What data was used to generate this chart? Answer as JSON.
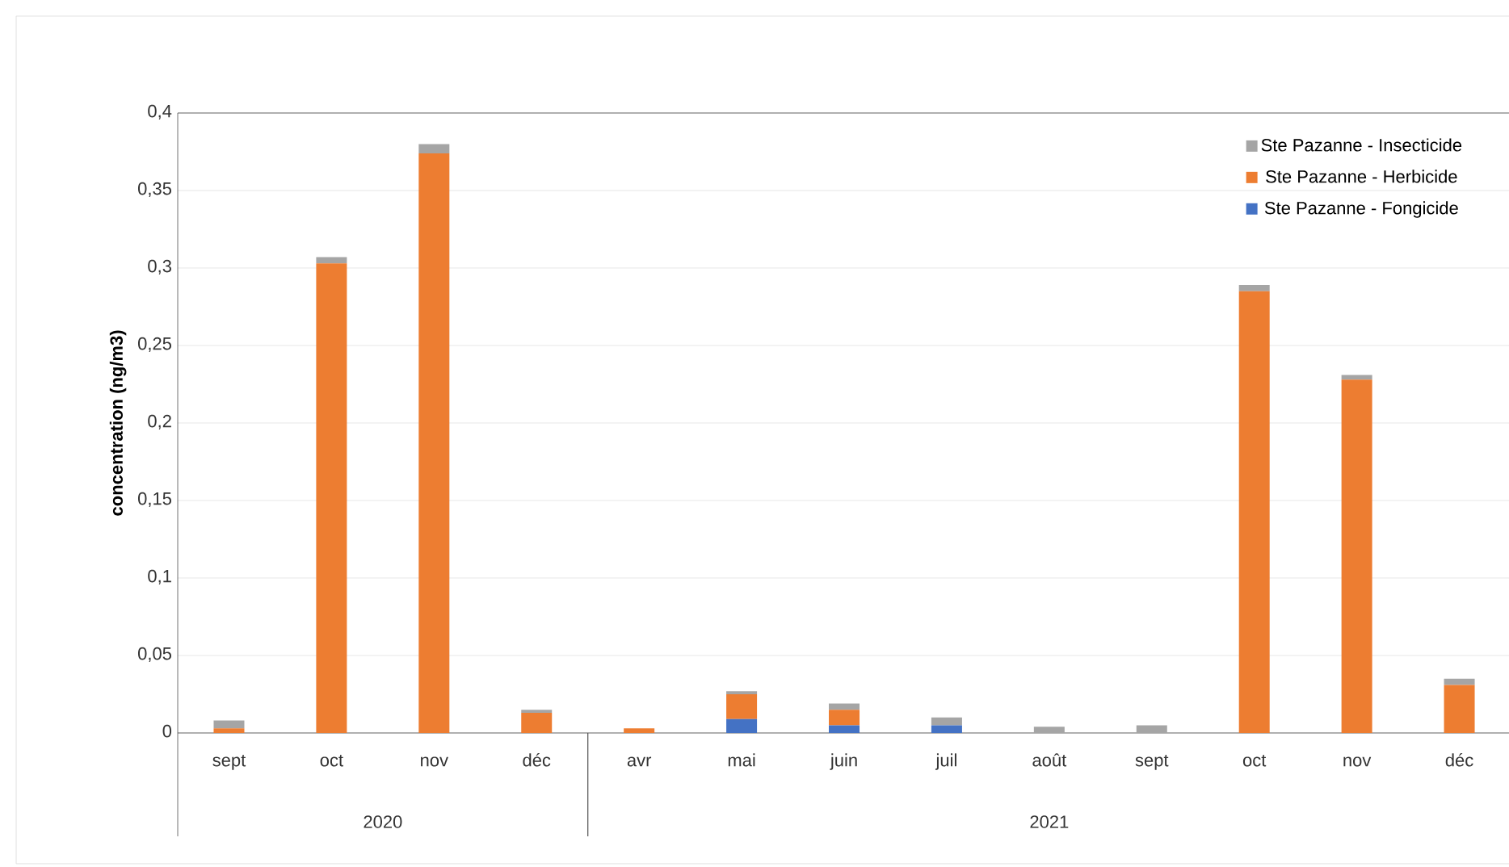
{
  "chart_data": {
    "type": "bar",
    "stacked": true,
    "ylabel": "concentration (ng/m3)",
    "categories": [
      "sept",
      "oct",
      "nov",
      "déc",
      "avr",
      "mai",
      "juin",
      "juil",
      "août",
      "sept",
      "oct",
      "nov",
      "déc"
    ],
    "series": [
      {
        "name": "Ste Pazanne - Fongicide",
        "color": "#4472c4",
        "values": [
          0,
          0,
          0,
          0,
          0,
          0.009,
          0.005,
          0.005,
          0,
          0,
          0,
          0,
          0
        ]
      },
      {
        "name": "Ste Pazanne - Herbicide",
        "color": "#ed7d31",
        "values": [
          0.003,
          0.303,
          0.374,
          0.013,
          0.003,
          0.016,
          0.01,
          0,
          0,
          0,
          0.285,
          0.228,
          0.031
        ]
      },
      {
        "name": "Ste Pazanne - Insecticide",
        "color": "#a5a5a5",
        "values": [
          0.005,
          0.004,
          0.006,
          0.002,
          0,
          0.002,
          0.004,
          0.005,
          0.004,
          0.005,
          0.004,
          0.003,
          0.004
        ]
      }
    ],
    "ylim": [
      0,
      0.4
    ],
    "yticks": [
      {
        "value": 0,
        "label": "0"
      },
      {
        "value": 0.05,
        "label": "0,05"
      },
      {
        "value": 0.1,
        "label": "0,1"
      },
      {
        "value": 0.15,
        "label": "0,15"
      },
      {
        "value": 0.2,
        "label": "0,2"
      },
      {
        "value": 0.25,
        "label": "0,25"
      },
      {
        "value": 0.3,
        "label": "0,3"
      },
      {
        "value": 0.35,
        "label": "0,35"
      },
      {
        "value": 0.4,
        "label": "0,4"
      }
    ],
    "grid": "y",
    "legend": "top right",
    "annotations": [
      "2020",
      "2021"
    ]
  }
}
